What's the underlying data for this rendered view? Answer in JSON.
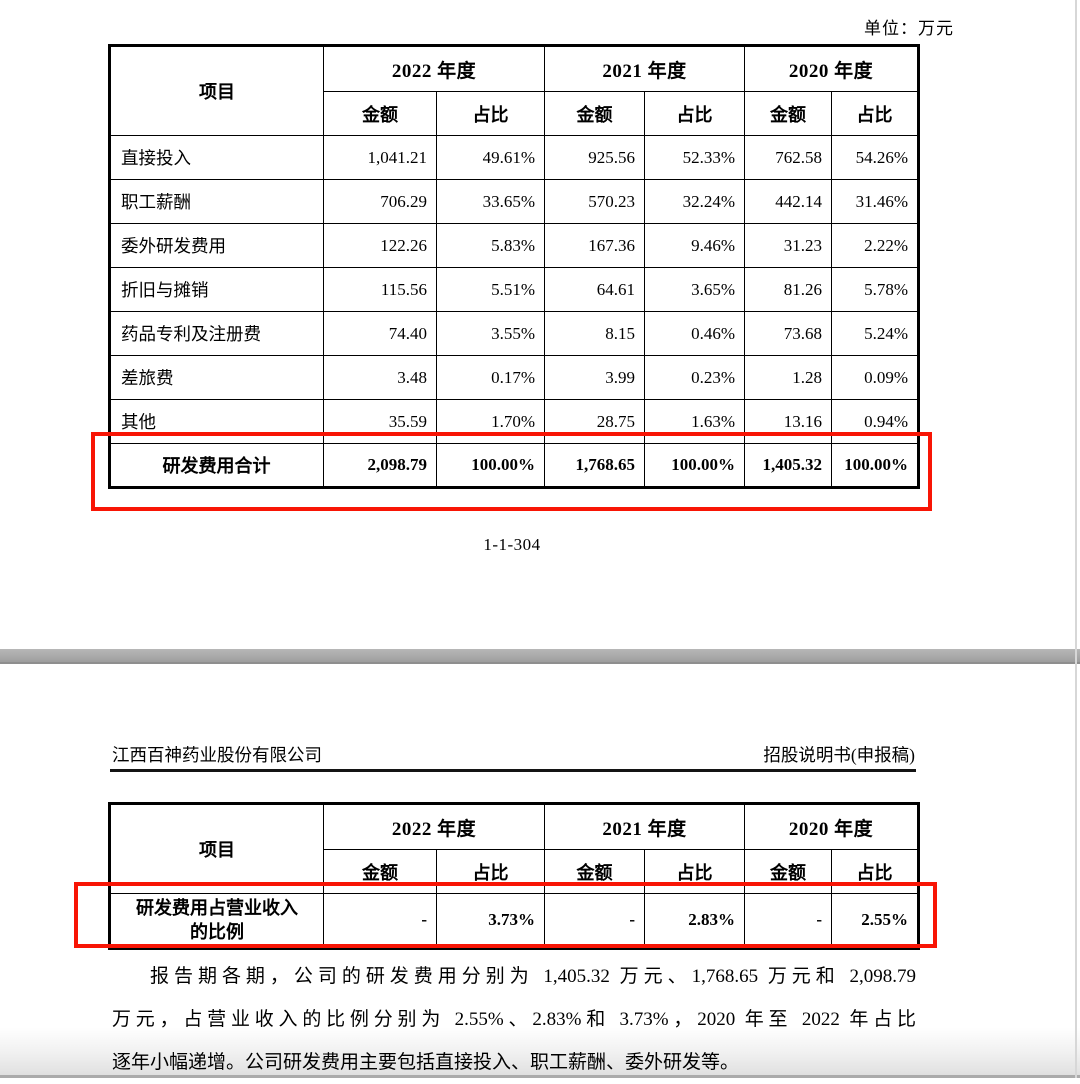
{
  "page1": {
    "unit_label": "单位：万元",
    "page_number": "1-1-304",
    "table": {
      "col_item": "项目",
      "col_2022": "2022 年度",
      "col_2021": "2021 年度",
      "col_2020": "2020 年度",
      "col_amount": "金额",
      "col_ratio": "占比",
      "rows": [
        {
          "label": "直接投入",
          "a2022": "1,041.21",
          "r2022": "49.61%",
          "a2021": "925.56",
          "r2021": "52.33%",
          "a2020": "762.58",
          "r2020": "54.26%"
        },
        {
          "label": "职工薪酬",
          "a2022": "706.29",
          "r2022": "33.65%",
          "a2021": "570.23",
          "r2021": "32.24%",
          "a2020": "442.14",
          "r2020": "31.46%"
        },
        {
          "label": "委外研发费用",
          "a2022": "122.26",
          "r2022": "5.83%",
          "a2021": "167.36",
          "r2021": "9.46%",
          "a2020": "31.23",
          "r2020": "2.22%"
        },
        {
          "label": "折旧与摊销",
          "a2022": "115.56",
          "r2022": "5.51%",
          "a2021": "64.61",
          "r2021": "3.65%",
          "a2020": "81.26",
          "r2020": "5.78%"
        },
        {
          "label": "药品专利及注册费",
          "a2022": "74.40",
          "r2022": "3.55%",
          "a2021": "8.15",
          "r2021": "0.46%",
          "a2020": "73.68",
          "r2020": "5.24%"
        },
        {
          "label": "差旅费",
          "a2022": "3.48",
          "r2022": "0.17%",
          "a2021": "3.99",
          "r2021": "0.23%",
          "a2020": "1.28",
          "r2020": "0.09%"
        },
        {
          "label": "其他",
          "a2022": "35.59",
          "r2022": "1.70%",
          "a2021": "28.75",
          "r2021": "1.63%",
          "a2020": "13.16",
          "r2020": "0.94%"
        }
      ],
      "total": {
        "label": "研发费用合计",
        "a2022": "2,098.79",
        "r2022": "100.00%",
        "a2021": "1,768.65",
        "r2021": "100.00%",
        "a2020": "1,405.32",
        "r2020": "100.00%"
      }
    }
  },
  "page2": {
    "header_left": "江西百神药业股份有限公司",
    "header_right": "招股说明书(申报稿)",
    "table": {
      "col_item": "项目",
      "col_2022": "2022 年度",
      "col_2021": "2021 年度",
      "col_2020": "2020 年度",
      "col_amount": "金额",
      "col_ratio": "占比",
      "row": {
        "label": "研发费用占营业收入的比例",
        "a2022": "-",
        "r2022": "3.73%",
        "a2021": "-",
        "r2021": "2.83%",
        "a2020": "-",
        "r2020": "2.55%"
      }
    },
    "paragraph_lines": [
      "报告期各期，公司的研发费用分别为 1,405.32 万元、1,768.65 万元和 2,098.79",
      "万元，占营业收入的比例分别为 2.55%、2.83%和 3.73%，2020 年至 2022 年占比",
      "逐年小幅递增。公司研发费用主要包括直接投入、职工薪酬、委外研发等。"
    ]
  },
  "colors": {
    "highlight_red": "#f81505",
    "divider_gray": "#a6a6a6",
    "table_border": "#000000"
  }
}
